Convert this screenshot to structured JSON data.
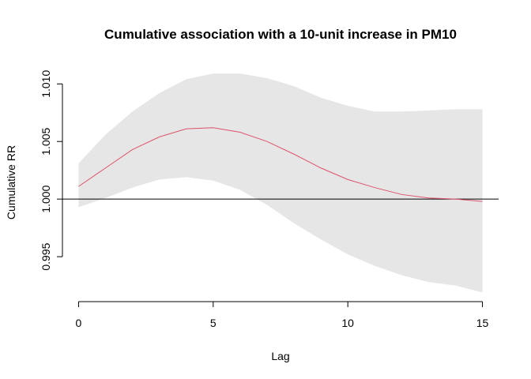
{
  "chart_data": {
    "type": "line",
    "title": "Cumulative association with a 10-unit increase in PM10",
    "xlabel": "Lag",
    "ylabel": "Cumulative RR",
    "xlim": [
      -0.6,
      15.6
    ],
    "ylim": [
      0.9911,
      1.0118
    ],
    "x_ticks": [
      0,
      5,
      10,
      15
    ],
    "y_ticks": [
      0.995,
      1.0,
      1.005,
      1.01
    ],
    "y_tick_labels": [
      "0.995",
      "1.000",
      "1.005",
      "1.010"
    ],
    "reference_line": 1.0,
    "grid": false,
    "colors": {
      "line": "#df536b",
      "band": "#e6e6e6",
      "reference": "#000000"
    },
    "x": [
      0,
      1,
      2,
      3,
      4,
      5,
      6,
      7,
      8,
      9,
      10,
      11,
      12,
      13,
      14,
      15
    ],
    "series": [
      {
        "role": "estimate",
        "values": [
          1.0011,
          1.0027,
          1.0043,
          1.0054,
          1.0061,
          1.0062,
          1.0058,
          1.005,
          1.0039,
          1.0027,
          1.0017,
          1.001,
          1.0004,
          1.0001,
          1.0,
          0.9998
        ]
      },
      {
        "role": "lower",
        "values": [
          0.9993,
          1.0001,
          1.001,
          1.0017,
          1.0019,
          1.0016,
          1.0008,
          0.9995,
          0.9979,
          0.9965,
          0.9952,
          0.9942,
          0.9934,
          0.9928,
          0.9925,
          0.9919
        ]
      },
      {
        "role": "upper",
        "values": [
          1.0031,
          1.0056,
          1.0076,
          1.0092,
          1.0104,
          1.0109,
          1.0109,
          1.0105,
          1.0098,
          1.0088,
          1.0081,
          1.0076,
          1.0076,
          1.0077,
          1.0078,
          1.0078
        ]
      }
    ]
  }
}
